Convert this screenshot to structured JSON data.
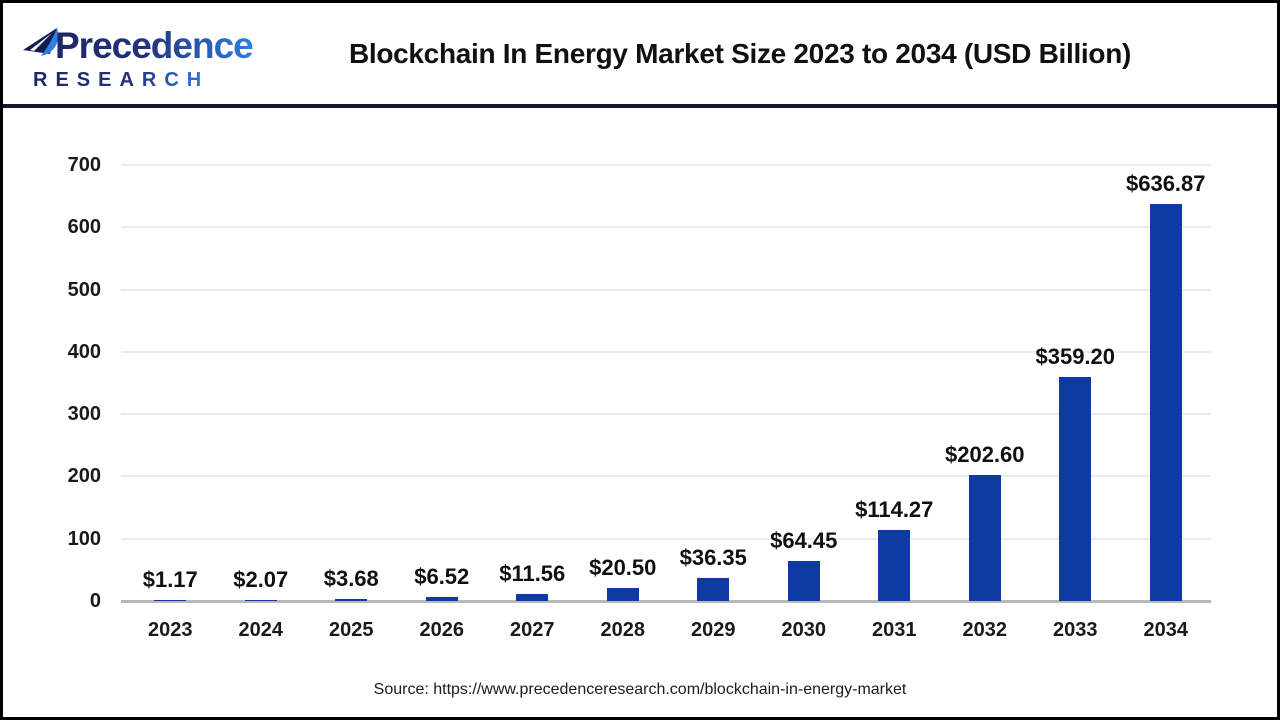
{
  "header": {
    "logo": {
      "line1": "Precedence",
      "line2": "RESEARCH"
    },
    "title": "Blockchain In Energy Market Size 2023 to 2034 (USD Billion)"
  },
  "chart_data": {
    "type": "bar",
    "title": "Blockchain In Energy Market Size 2023 to 2034 (USD Billion)",
    "unit": "USD Billion",
    "categories": [
      "2023",
      "2024",
      "2025",
      "2026",
      "2027",
      "2028",
      "2029",
      "2030",
      "2031",
      "2032",
      "2033",
      "2034"
    ],
    "values": [
      1.17,
      2.07,
      3.68,
      6.52,
      11.56,
      20.5,
      36.35,
      64.45,
      114.27,
      202.6,
      359.2,
      636.87
    ],
    "value_labels": [
      "$1.17",
      "$2.07",
      "$3.68",
      "$6.52",
      "$11.56",
      "$20.50",
      "$36.35",
      "$64.45",
      "$114.27",
      "$202.60",
      "$359.20",
      "$636.87"
    ],
    "xlabel": "",
    "ylabel": "",
    "ylim": [
      0,
      700
    ],
    "yticks": [
      0,
      100,
      200,
      300,
      400,
      500,
      600,
      700
    ],
    "grid": "horizontal",
    "legend": "none",
    "bar_color": "#0d3ba3"
  },
  "colors": {
    "bar": "#0d3ba3",
    "gridline": "#ebebeb",
    "zero_axis": "#b9b9b9",
    "header_rule": "#16162e",
    "logo_navy": "#1e2766",
    "logo_blue": "#2d7de2",
    "text": "#101010"
  },
  "footer": {
    "source": "Source: https://www.precedenceresearch.com/blockchain-in-energy-market"
  }
}
